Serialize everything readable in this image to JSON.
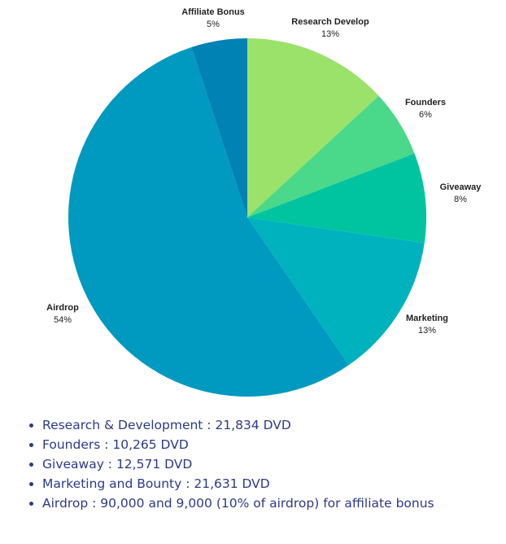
{
  "chart_data": {
    "type": "pie",
    "title": "",
    "slices": [
      {
        "name": "Research Develop",
        "value": 13,
        "label": "13%",
        "color": "#9be26a"
      },
      {
        "name": "Founders",
        "value": 6,
        "label": "6%",
        "color": "#4ad88a"
      },
      {
        "name": "Giveaway",
        "value": 8,
        "label": "8%",
        "color": "#00c49f"
      },
      {
        "name": "Marketing",
        "value": 13,
        "label": "13%",
        "color": "#00b2be"
      },
      {
        "name": "Airdrop",
        "value": 54,
        "label": "54%",
        "color": "#0099c0"
      },
      {
        "name": "Affiliate Bonus",
        "value": 5,
        "label": "5%",
        "color": "#0082b4"
      }
    ],
    "legend": false
  },
  "allocation_list": [
    "Research & Development : 21,834 DVD",
    "Founders : 10,265 DVD",
    "Giveaway : 12,571 DVD",
    "Marketing and Bounty : 21,631 DVD",
    "Airdrop : 90,000 and 9,000 (10% of airdrop) for affiliate bonus"
  ]
}
